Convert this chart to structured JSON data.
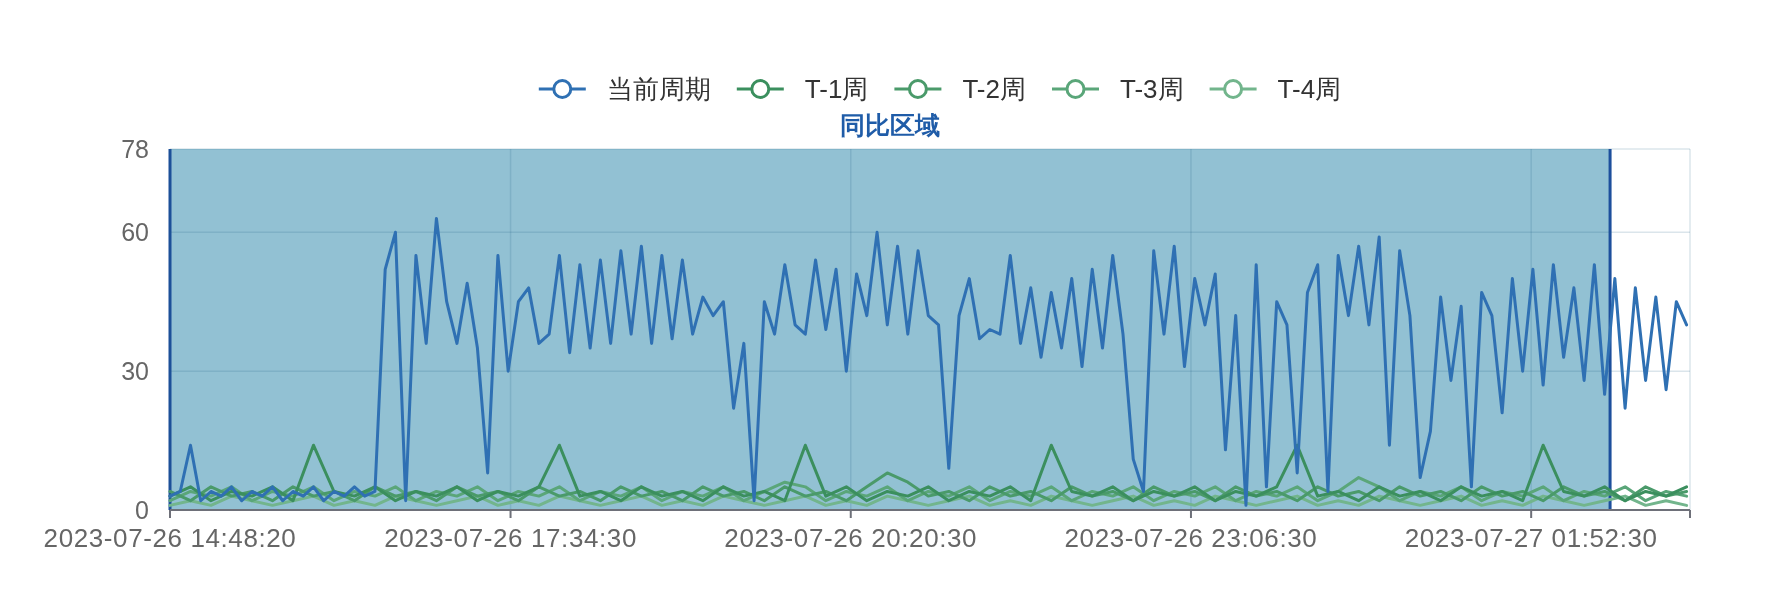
{
  "chart_data": {
    "type": "line",
    "legend": "top",
    "grid": true,
    "xlim": [
      "2023-07-26T14:48:20",
      "2023-07-27T03:10"
    ],
    "xticks": [
      {
        "value": "2023-07-26T14:48:20",
        "label": "2023-07-26 14:48:20"
      },
      {
        "value": "2023-07-26T17:34:30",
        "label": "2023-07-26 17:34:30"
      },
      {
        "value": "2023-07-26T20:20:30",
        "label": "2023-07-26 20:20:30"
      },
      {
        "value": "2023-07-26T23:06:30",
        "label": "2023-07-26 23:06:30"
      },
      {
        "value": "2023-07-27T01:52:30",
        "label": "2023-07-27 01:52:30"
      },
      {
        "value": "2023-07-27T03:10",
        "label": null
      }
    ],
    "ylim": [
      0,
      78
    ],
    "yticks": [
      0,
      30,
      60,
      78
    ],
    "bands": [
      {
        "axis": "x",
        "from": "2023-07-26T14:48:20",
        "to": "2023-07-27T02:31",
        "label": "同比区域",
        "color": "#92c1d3"
      }
    ],
    "x": [
      "2023-07-26T14:48:20",
      "2023-07-26T14:58:20",
      "2023-07-26T15:08:20",
      "2023-07-26T15:18:20",
      "2023-07-26T15:28:20",
      "2023-07-26T15:38:20",
      "2023-07-26T15:48:20",
      "2023-07-26T15:58:20",
      "2023-07-26T16:08:20",
      "2023-07-26T16:18:20",
      "2023-07-26T16:28:20",
      "2023-07-26T16:38:20",
      "2023-07-26T16:48:20",
      "2023-07-26T16:58:20",
      "2023-07-26T17:08:20",
      "2023-07-26T17:18:20",
      "2023-07-26T17:28:20",
      "2023-07-26T17:38:20",
      "2023-07-26T17:48:20",
      "2023-07-26T17:58:20",
      "2023-07-26T18:08:20",
      "2023-07-26T18:18:20",
      "2023-07-26T18:28:20",
      "2023-07-26T18:38:20",
      "2023-07-26T18:48:20",
      "2023-07-26T18:58:20",
      "2023-07-26T19:08:20",
      "2023-07-26T19:18:20",
      "2023-07-26T19:28:20",
      "2023-07-26T19:38:20",
      "2023-07-26T19:48:20",
      "2023-07-26T19:58:20",
      "2023-07-26T20:08:20",
      "2023-07-26T20:18:20",
      "2023-07-26T20:28:20",
      "2023-07-26T20:38:20",
      "2023-07-26T20:48:20",
      "2023-07-26T20:58:20",
      "2023-07-26T21:08:20",
      "2023-07-26T21:18:20",
      "2023-07-26T21:28:20",
      "2023-07-26T21:38:20",
      "2023-07-26T21:48:20",
      "2023-07-26T21:58:20",
      "2023-07-26T22:08:20",
      "2023-07-26T22:18:20",
      "2023-07-26T22:28:20",
      "2023-07-26T22:38:20",
      "2023-07-26T22:48:20",
      "2023-07-26T22:58:20",
      "2023-07-26T23:08:20",
      "2023-07-26T23:18:20",
      "2023-07-26T23:28:20",
      "2023-07-26T23:38:20",
      "2023-07-26T23:48:20",
      "2023-07-26T23:58:20",
      "2023-07-27T00:08:20",
      "2023-07-27T00:18:20",
      "2023-07-27T00:28:20",
      "2023-07-27T00:38:20",
      "2023-07-27T00:48:20",
      "2023-07-27T00:58:20",
      "2023-07-27T01:08:20",
      "2023-07-27T01:18:20",
      "2023-07-27T01:28:20",
      "2023-07-27T01:38:20",
      "2023-07-27T01:48:20",
      "2023-07-27T01:58:20",
      "2023-07-27T02:08:20",
      "2023-07-27T02:18:20",
      "2023-07-27T02:28:20",
      "2023-07-27T02:38:20",
      "2023-07-27T02:48:20",
      "2023-07-27T02:58:20",
      "2023-07-27T03:08:20"
    ],
    "series": [
      {
        "name": "当前周期",
        "color": "#2f70b3",
        "x": [
          "2023-07-26T14:48:20",
          "2023-07-26T14:53:20",
          "2023-07-26T14:58:20",
          "2023-07-26T15:03:20",
          "2023-07-26T15:08:20",
          "2023-07-26T15:13:20",
          "2023-07-26T15:18:20",
          "2023-07-26T15:23:20",
          "2023-07-26T15:28:20",
          "2023-07-26T15:33:20",
          "2023-07-26T15:38:20",
          "2023-07-26T15:43:20",
          "2023-07-26T15:48:20",
          "2023-07-26T15:53:20",
          "2023-07-26T15:58:20",
          "2023-07-26T16:03:20",
          "2023-07-26T16:08:20",
          "2023-07-26T16:13:20",
          "2023-07-26T16:18:20",
          "2023-07-26T16:23:20",
          "2023-07-26T16:28:20",
          "2023-07-26T16:33:20",
          "2023-07-26T16:38:20",
          "2023-07-26T16:43:20",
          "2023-07-26T16:48:20",
          "2023-07-26T16:53:20",
          "2023-07-26T16:58:20",
          "2023-07-26T17:03:20",
          "2023-07-26T17:08:20",
          "2023-07-26T17:13:20",
          "2023-07-26T17:18:20",
          "2023-07-26T17:23:20",
          "2023-07-26T17:28:20",
          "2023-07-26T17:33:20",
          "2023-07-26T17:38:20",
          "2023-07-26T17:43:20",
          "2023-07-26T17:48:20",
          "2023-07-26T17:53:20",
          "2023-07-26T17:58:20",
          "2023-07-26T18:03:20",
          "2023-07-26T18:08:20",
          "2023-07-26T18:13:20",
          "2023-07-26T18:18:20",
          "2023-07-26T18:23:20",
          "2023-07-26T18:28:20",
          "2023-07-26T18:33:20",
          "2023-07-26T18:38:20",
          "2023-07-26T18:43:20",
          "2023-07-26T18:48:20",
          "2023-07-26T18:53:20",
          "2023-07-26T18:58:20",
          "2023-07-26T19:03:20",
          "2023-07-26T19:08:20",
          "2023-07-26T19:13:20",
          "2023-07-26T19:18:20",
          "2023-07-26T19:23:20",
          "2023-07-26T19:28:20",
          "2023-07-26T19:33:20",
          "2023-07-26T19:38:20",
          "2023-07-26T19:43:20",
          "2023-07-26T19:48:20",
          "2023-07-26T19:53:20",
          "2023-07-26T19:58:20",
          "2023-07-26T20:03:20",
          "2023-07-26T20:08:20",
          "2023-07-26T20:13:20",
          "2023-07-26T20:18:20",
          "2023-07-26T20:23:20",
          "2023-07-26T20:28:20",
          "2023-07-26T20:33:20",
          "2023-07-26T20:38:20",
          "2023-07-26T20:43:20",
          "2023-07-26T20:48:20",
          "2023-07-26T20:53:20",
          "2023-07-26T20:58:20",
          "2023-07-26T21:03:20",
          "2023-07-26T21:08:20",
          "2023-07-26T21:13:20",
          "2023-07-26T21:18:20",
          "2023-07-26T21:23:20",
          "2023-07-26T21:28:20",
          "2023-07-26T21:33:20",
          "2023-07-26T21:38:20",
          "2023-07-26T21:43:20",
          "2023-07-26T21:48:20",
          "2023-07-26T21:53:20",
          "2023-07-26T21:58:20",
          "2023-07-26T22:03:20",
          "2023-07-26T22:08:20",
          "2023-07-26T22:13:20",
          "2023-07-26T22:18:20",
          "2023-07-26T22:23:20",
          "2023-07-26T22:28:20",
          "2023-07-26T22:33:20",
          "2023-07-26T22:38:20",
          "2023-07-26T22:43:20",
          "2023-07-26T22:48:20",
          "2023-07-26T22:53:20",
          "2023-07-26T22:58:20",
          "2023-07-26T23:03:20",
          "2023-07-26T23:08:20",
          "2023-07-26T23:13:20",
          "2023-07-26T23:18:20",
          "2023-07-26T23:23:20",
          "2023-07-26T23:28:20",
          "2023-07-26T23:33:20",
          "2023-07-26T23:38:20",
          "2023-07-26T23:43:20",
          "2023-07-26T23:48:20",
          "2023-07-26T23:53:20",
          "2023-07-26T23:58:20",
          "2023-07-27T00:03:20",
          "2023-07-27T00:08:20",
          "2023-07-27T00:13:20",
          "2023-07-27T00:18:20",
          "2023-07-27T00:23:20",
          "2023-07-27T00:28:20",
          "2023-07-27T00:33:20",
          "2023-07-27T00:38:20",
          "2023-07-27T00:43:20",
          "2023-07-27T00:48:20",
          "2023-07-27T00:53:20",
          "2023-07-27T00:58:20",
          "2023-07-27T01:03:20",
          "2023-07-27T01:08:20",
          "2023-07-27T01:13:20",
          "2023-07-27T01:18:20",
          "2023-07-27T01:23:20",
          "2023-07-27T01:28:20",
          "2023-07-27T01:33:20",
          "2023-07-27T01:38:20",
          "2023-07-27T01:43:20",
          "2023-07-27T01:48:20",
          "2023-07-27T01:53:20",
          "2023-07-27T01:58:20",
          "2023-07-27T02:03:20",
          "2023-07-27T02:08:20",
          "2023-07-27T02:13:20",
          "2023-07-27T02:18:20",
          "2023-07-27T02:23:20",
          "2023-07-27T02:28:20",
          "2023-07-27T02:33:20",
          "2023-07-27T02:38:20",
          "2023-07-27T02:43:20",
          "2023-07-27T02:48:20",
          "2023-07-27T02:53:20",
          "2023-07-27T02:58:20",
          "2023-07-27T03:03:20",
          "2023-07-27T03:08:20"
        ],
        "values": [
          3,
          4,
          14,
          2,
          4,
          3,
          5,
          2,
          4,
          3,
          5,
          2,
          4,
          3,
          5,
          2,
          4,
          3,
          5,
          3,
          4,
          52,
          60,
          2,
          55,
          36,
          63,
          45,
          36,
          49,
          35,
          8,
          55,
          30,
          45,
          48,
          36,
          38,
          55,
          34,
          53,
          35,
          54,
          36,
          56,
          38,
          57,
          36,
          55,
          37,
          54,
          38,
          46,
          42,
          45,
          22,
          36,
          2,
          45,
          38,
          53,
          40,
          38,
          54,
          39,
          52,
          30,
          51,
          42,
          60,
          40,
          57,
          38,
          56,
          42,
          40,
          9,
          42,
          50,
          37,
          39,
          38,
          55,
          36,
          48,
          33,
          47,
          35,
          50,
          31,
          52,
          35,
          55,
          38,
          11,
          4,
          56,
          38,
          57,
          31,
          50,
          40,
          51,
          13,
          42,
          1,
          53,
          5,
          45,
          40,
          8,
          47,
          53,
          4,
          55,
          42,
          57,
          40,
          59,
          14,
          56,
          42,
          7,
          17,
          46,
          28,
          44,
          5,
          47,
          42,
          21,
          50,
          30,
          52,
          27,
          53,
          33,
          48,
          28,
          53,
          25,
          50,
          22,
          48,
          28,
          46,
          26,
          45,
          40
        ]
      },
      {
        "name": "T-1周",
        "color": "#3b8f5e",
        "values": [
          3,
          5,
          2,
          4,
          3,
          5,
          2,
          14,
          4,
          3,
          5,
          2,
          4,
          3,
          5,
          2,
          4,
          3,
          5,
          14,
          3,
          4,
          2,
          5,
          3,
          4,
          2,
          5,
          3,
          4,
          2,
          14,
          3,
          5,
          2,
          4,
          3,
          5,
          2,
          4,
          3,
          5,
          2,
          14,
          4,
          3,
          5,
          2,
          4,
          3,
          5,
          2,
          4,
          3,
          5,
          14,
          3,
          4,
          2,
          5,
          3,
          4,
          2,
          5,
          3,
          4,
          2,
          14,
          4,
          3,
          5,
          2,
          4,
          3,
          5
        ]
      },
      {
        "name": "T-2周",
        "color": "#4a9a6a",
        "values": [
          4,
          2,
          5,
          3,
          4,
          2,
          5,
          3,
          4,
          2,
          5,
          3,
          4,
          2,
          5,
          3,
          4,
          2,
          5,
          3,
          4,
          2,
          5,
          3,
          4,
          2,
          5,
          3,
          4,
          2,
          5,
          3,
          4,
          2,
          5,
          8,
          6,
          3,
          4,
          2,
          5,
          3,
          4,
          2,
          5,
          3,
          4,
          2,
          5,
          3,
          4,
          2,
          5,
          3,
          4,
          2,
          5,
          3,
          4,
          2,
          5,
          3,
          4,
          2,
          5,
          3,
          4,
          2,
          5,
          3,
          4,
          2,
          5,
          3,
          4
        ]
      },
      {
        "name": "T-3周",
        "color": "#5aa679",
        "values": [
          2,
          4,
          3,
          5,
          2,
          4,
          3,
          5,
          2,
          4,
          3,
          5,
          2,
          4,
          3,
          5,
          2,
          4,
          3,
          5,
          2,
          4,
          3,
          5,
          2,
          4,
          3,
          5,
          2,
          4,
          6,
          5,
          2,
          4,
          3,
          5,
          2,
          4,
          3,
          5,
          2,
          4,
          3,
          5,
          2,
          4,
          3,
          5,
          2,
          4,
          3,
          5,
          2,
          4,
          3,
          5,
          2,
          4,
          7,
          5,
          2,
          4,
          3,
          5,
          2,
          4,
          3,
          5,
          2,
          4,
          3,
          5,
          2,
          4,
          3
        ]
      },
      {
        "name": "T-4周",
        "color": "#72b58c",
        "values": [
          1,
          2,
          1,
          3,
          2,
          1,
          2,
          3,
          1,
          2,
          1,
          3,
          2,
          1,
          2,
          3,
          1,
          2,
          1,
          3,
          2,
          1,
          2,
          3,
          1,
          2,
          1,
          3,
          2,
          1,
          2,
          3,
          1,
          2,
          1,
          3,
          2,
          1,
          2,
          3,
          1,
          2,
          1,
          3,
          2,
          1,
          2,
          3,
          1,
          2,
          1,
          3,
          2,
          1,
          2,
          3,
          1,
          2,
          1,
          3,
          2,
          1,
          2,
          3,
          1,
          2,
          1,
          3,
          2,
          1,
          2,
          3,
          1,
          2,
          1
        ]
      }
    ]
  }
}
